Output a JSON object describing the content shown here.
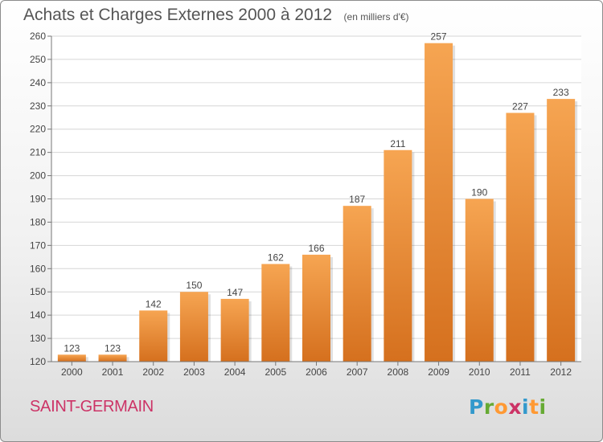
{
  "header": {
    "title": "Achats et Charges Externes 2000 à 2012",
    "subtitle": "(en milliers d'€)"
  },
  "footer": {
    "commune": "SAINT-GERMAIN",
    "logo_text": "Proxiti"
  },
  "colors": {
    "bar_light": "#f6a552",
    "bar_dark": "#d5701e",
    "grid": "#d6d6d6",
    "axis": "#777777",
    "text": "#444444",
    "commune": "#cc3366",
    "logo": [
      "#3399cc",
      "#66aa33",
      "#ff9933",
      "#cc3366",
      "#3399cc",
      "#ff9933",
      "#66aa33"
    ]
  },
  "chart_data": {
    "type": "bar",
    "title": "Achats et Charges Externes 2000 à 2012",
    "subtitle": "(en milliers d'€)",
    "xlabel": "",
    "ylabel": "",
    "categories": [
      "2000",
      "2001",
      "2002",
      "2003",
      "2004",
      "2005",
      "2006",
      "2007",
      "2008",
      "2009",
      "2010",
      "2011",
      "2012"
    ],
    "values": [
      123,
      123,
      142,
      150,
      147,
      162,
      166,
      187,
      211,
      257,
      190,
      227,
      233
    ],
    "ylim": [
      120,
      260
    ],
    "yticks": [
      120,
      130,
      140,
      150,
      160,
      170,
      180,
      190,
      200,
      210,
      220,
      230,
      240,
      250,
      260
    ],
    "grid": true,
    "legend": "none"
  }
}
